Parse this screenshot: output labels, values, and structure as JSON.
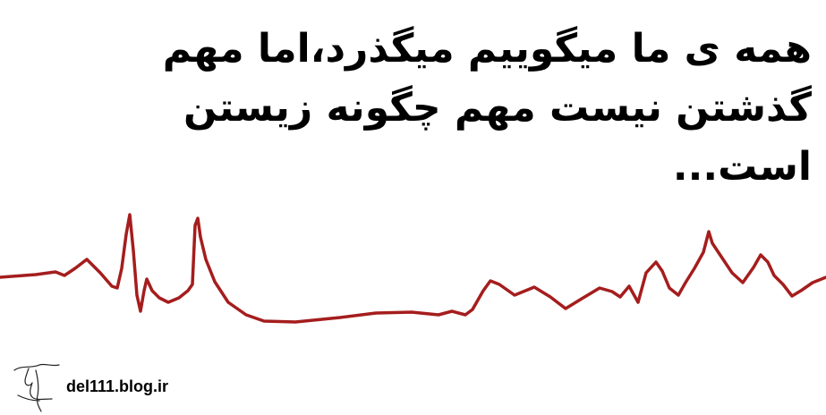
{
  "quote": {
    "lines": [
      "همه ی ما میگوییم میگذرد،اما مهم",
      "گذشتن نیست مهم چگونه زیستن",
      "است..."
    ]
  },
  "watermark": {
    "text": "del111.blog.ir"
  },
  "colors": {
    "pulse_line": "#a51d1d",
    "text": "#000000"
  },
  "icons": {
    "pulse": "heartbeat-line",
    "signature": "handwritten-signature"
  }
}
